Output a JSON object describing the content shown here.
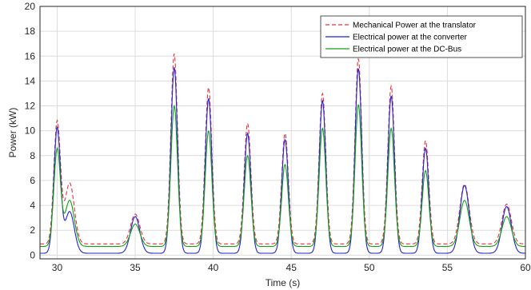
{
  "chart_data": {
    "type": "line",
    "title": "",
    "xlabel": "Time (s)",
    "ylabel": "Power (kW)",
    "xlim": [
      28.9,
      60
    ],
    "ylim": [
      -0.3,
      20
    ],
    "xticks": [
      30,
      35,
      40,
      45,
      50,
      55,
      60
    ],
    "yticks": [
      0,
      2,
      4,
      6,
      8,
      10,
      12,
      14,
      16,
      18,
      20
    ],
    "grid": true,
    "legend_position": "top-right",
    "peaks": [
      {
        "t": 30.0,
        "mech": 10.7,
        "conv": 10.2,
        "dcbus": 8.5
      },
      {
        "t": 30.8,
        "mech": 5.8,
        "conv": 3.5,
        "dcbus": 4.4
      },
      {
        "t": 35.0,
        "mech": 3.3,
        "conv": 3.1,
        "dcbus": 2.5
      },
      {
        "t": 37.5,
        "mech": 16.2,
        "conv": 15.1,
        "dcbus": 12.0
      },
      {
        "t": 39.7,
        "mech": 13.5,
        "conv": 12.6,
        "dcbus": 10.0
      },
      {
        "t": 42.2,
        "mech": 10.6,
        "conv": 9.8,
        "dcbus": 8.0
      },
      {
        "t": 44.6,
        "mech": 9.8,
        "conv": 9.3,
        "dcbus": 7.3
      },
      {
        "t": 47.0,
        "mech": 13.0,
        "conv": 12.4,
        "dcbus": 10.2
      },
      {
        "t": 49.3,
        "mech": 15.8,
        "conv": 15.0,
        "dcbus": 12.1
      },
      {
        "t": 51.4,
        "mech": 13.6,
        "conv": 12.8,
        "dcbus": 10.2
      },
      {
        "t": 53.6,
        "mech": 9.2,
        "conv": 8.6,
        "dcbus": 6.8
      },
      {
        "t": 56.1,
        "mech": 5.7,
        "conv": 5.6,
        "dcbus": 4.4
      },
      {
        "t": 58.8,
        "mech": 4.1,
        "conv": 3.9,
        "dcbus": 3.1
      }
    ],
    "series": [
      {
        "name": "Mechanical Power at the translator",
        "key": "mech",
        "color": "#e8323c",
        "dash": "dashed",
        "base": 0.9
      },
      {
        "name": "Electrical power at the converter",
        "key": "conv",
        "color": "#2323d0",
        "dash": "solid",
        "base": 0.15
      },
      {
        "name": "Electrical power at the DC-Bus",
        "key": "dcbus",
        "color": "#13a013",
        "dash": "solid",
        "base": 0.7
      }
    ]
  }
}
